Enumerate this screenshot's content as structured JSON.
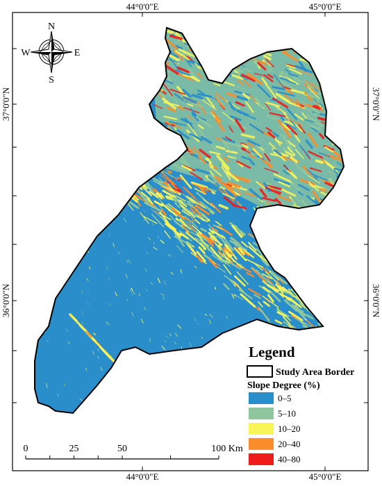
{
  "compass": {
    "north": "N",
    "south": "S",
    "east": "E",
    "west": "W"
  },
  "grid_labels": {
    "top": [
      "44°0'0\"E",
      "45°0'0\"E"
    ],
    "bottom": [
      "44°0'0\"E",
      "45°0'0\"E"
    ],
    "left": [
      "37°0'0\"N",
      "36°0'0\"N"
    ],
    "right": [
      "37°0'0\"N",
      "36°0'0\"N"
    ]
  },
  "legend": {
    "title": "Legend",
    "border": "Study Area Border",
    "subtitle": "Slope Degree (%)",
    "classes": [
      {
        "label": "0–5",
        "color": "#2a8ecb"
      },
      {
        "label": "5–10",
        "color": "#8ec79e"
      },
      {
        "label": "10–20",
        "color": "#f7f55a"
      },
      {
        "label": "20–40",
        "color": "#fb8d2b"
      },
      {
        "label": "40–80",
        "color": "#ee1c1c"
      }
    ]
  },
  "scale_bar": {
    "labels": [
      "0",
      "25",
      "50",
      "100 Km"
    ]
  }
}
